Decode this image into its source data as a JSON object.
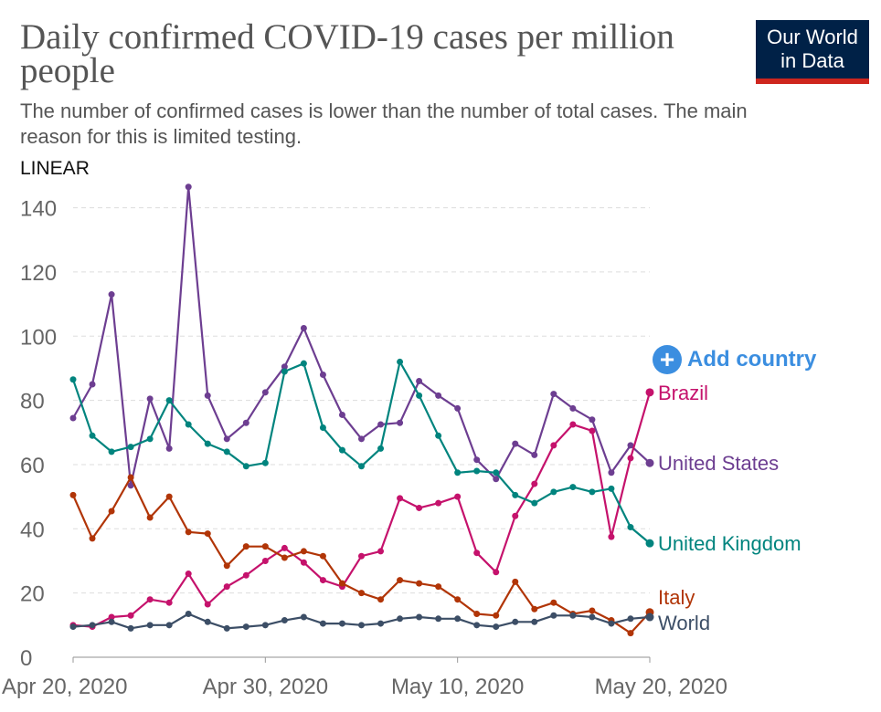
{
  "header": {
    "title": "Daily confirmed COVID-19 cases per million people",
    "subtitle": "The number of confirmed cases is lower than the number of total cases. The main reason for this is limited testing.",
    "scale_toggle": "LINEAR"
  },
  "logo": {
    "line1": "Our World",
    "line2": "in Data"
  },
  "controls": {
    "add_country": "Add country",
    "add_icon": "plus-circle-icon"
  },
  "chart_data": {
    "type": "line",
    "title": "Daily confirmed COVID-19 cases per million people",
    "xlabel": "",
    "ylabel": "",
    "x_start": "2020-04-20",
    "x_end": "2020-05-20",
    "ylim": [
      0,
      145
    ],
    "y_ticks": [
      0,
      20,
      40,
      60,
      80,
      100,
      120,
      140
    ],
    "x_ticks": [
      {
        "date": "2020-04-20",
        "label": "Apr 20, 2020"
      },
      {
        "date": "2020-04-30",
        "label": "Apr 30, 2020"
      },
      {
        "date": "2020-05-10",
        "label": "May 10, 2020"
      },
      {
        "date": "2020-05-20",
        "label": "May 20, 2020"
      }
    ],
    "grid": true,
    "legend": "right (line-end labels)",
    "series": [
      {
        "name": "United States",
        "color": "#6d3e91",
        "values": [
          74.5,
          85,
          113,
          53.5,
          80.5,
          65,
          146.5,
          81.5,
          68,
          73,
          82.5,
          90.5,
          102.5,
          88,
          75.5,
          68,
          72.5,
          73,
          86,
          81.5,
          77.5,
          61.5,
          55.5,
          66.5,
          63,
          82,
          77.5,
          74,
          57.5,
          66,
          60.5
        ]
      },
      {
        "name": "Brazil",
        "color": "#c5126c",
        "values": [
          10,
          9.5,
          12.5,
          13,
          18,
          17,
          26,
          16.5,
          22,
          25.5,
          30,
          34,
          29.5,
          24,
          22,
          31.5,
          33,
          49.5,
          46.5,
          48,
          50,
          32.5,
          26.5,
          44,
          54,
          66,
          72.5,
          70.5,
          37.5,
          62,
          82.5
        ]
      },
      {
        "name": "United Kingdom",
        "color": "#00847e",
        "values": [
          86.5,
          69,
          64,
          65.5,
          68,
          80,
          72.5,
          66.5,
          64,
          59.5,
          60.5,
          89,
          91.5,
          71.5,
          64.5,
          59.5,
          65,
          92,
          81.5,
          69,
          57.5,
          58,
          57.5,
          50.5,
          48,
          51.5,
          53,
          51.5,
          52.5,
          40.5,
          35.5
        ]
      },
      {
        "name": "Italy",
        "color": "#b13507",
        "values": [
          50.5,
          37,
          45.5,
          56,
          43.5,
          50,
          39,
          38.5,
          28.5,
          34.5,
          34.5,
          31,
          33,
          31.5,
          23,
          20,
          18,
          24,
          23,
          22,
          18,
          13.5,
          13,
          23.5,
          15,
          17,
          13.5,
          14.5,
          11.5,
          7.5,
          14
        ]
      },
      {
        "name": "World",
        "color": "#3c4e66",
        "values": [
          9.5,
          10,
          11,
          9,
          10,
          10,
          13.5,
          11,
          9,
          9.5,
          10,
          11.5,
          12.5,
          10.5,
          10.5,
          10,
          10.5,
          12,
          12.5,
          12,
          12,
          10,
          9.5,
          11,
          11,
          13,
          13,
          12.5,
          10.5,
          12,
          12.5
        ]
      }
    ]
  }
}
